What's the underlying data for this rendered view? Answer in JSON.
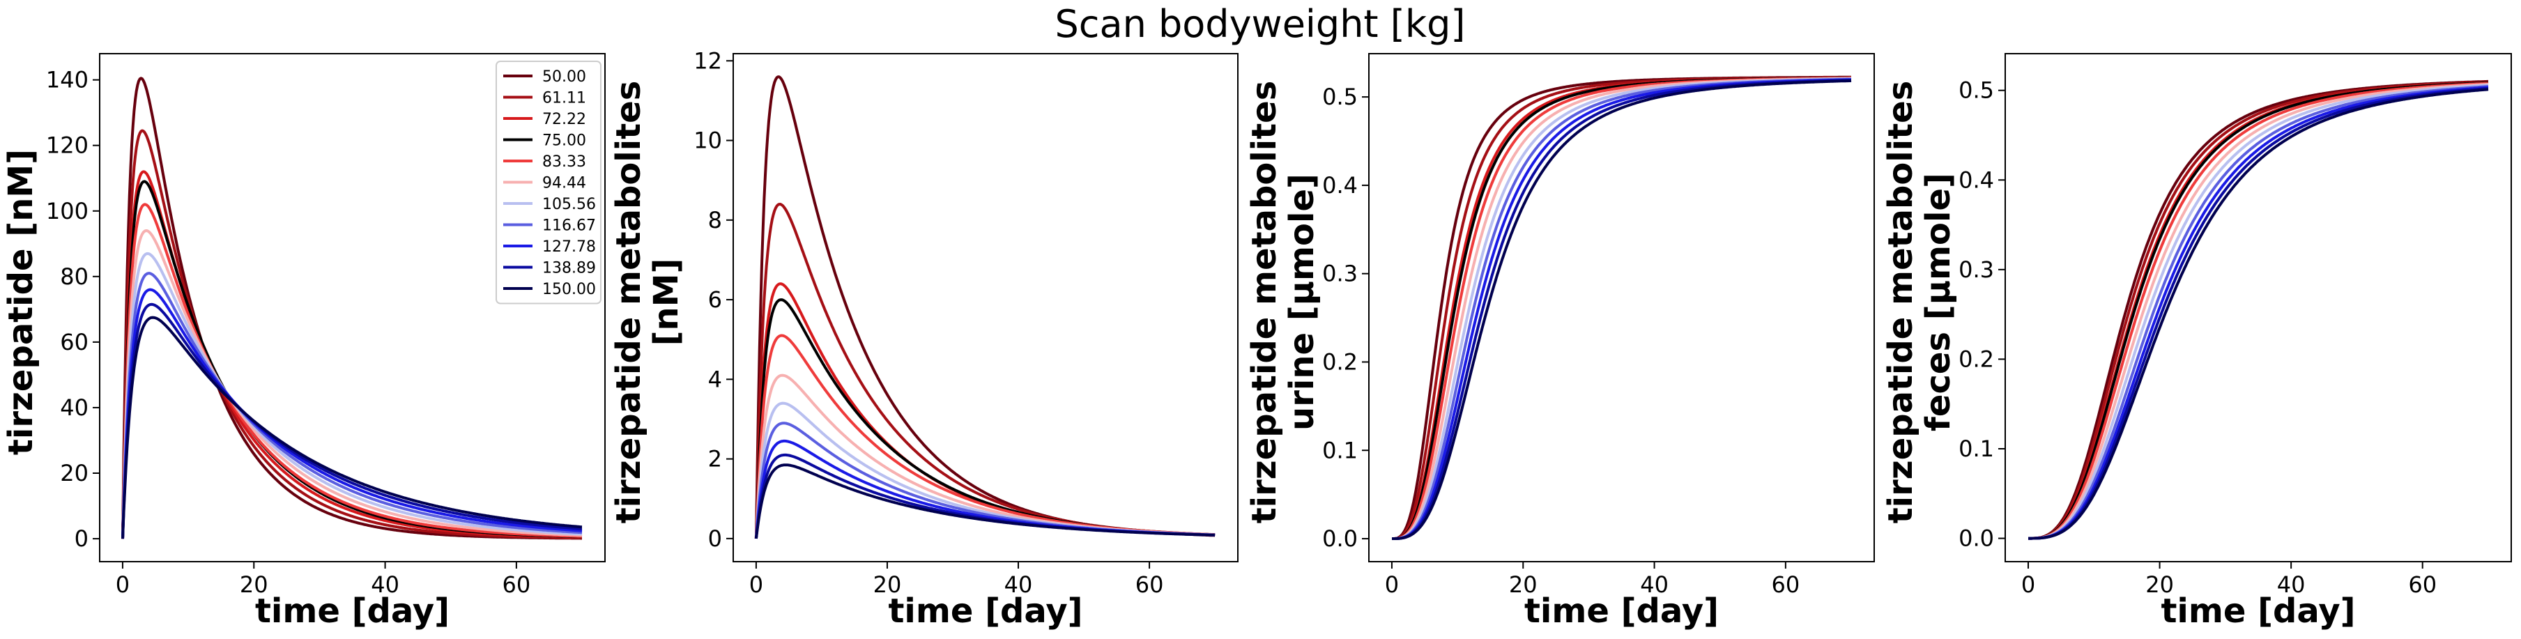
{
  "figure": {
    "title": "Scan bodyweight [kg]"
  },
  "legend": {
    "entries": [
      {
        "label": "50.00",
        "color": "#67000d"
      },
      {
        "label": "61.11",
        "color": "#a50f15"
      },
      {
        "label": "72.22",
        "color": "#d7191c"
      },
      {
        "label": "75.00",
        "color": "#000000"
      },
      {
        "label": "83.33",
        "color": "#ef3b3b"
      },
      {
        "label": "94.44",
        "color": "#f7b0b0"
      },
      {
        "label": "105.56",
        "color": "#b8bff0"
      },
      {
        "label": "116.67",
        "color": "#5a5ee0"
      },
      {
        "label": "127.78",
        "color": "#1a1ae6"
      },
      {
        "label": "138.89",
        "color": "#0a0aa0"
      },
      {
        "label": "150.00",
        "color": "#00004f"
      }
    ],
    "placement": "upper-right of first panel"
  },
  "chart_data": [
    {
      "type": "line",
      "xlabel": "time [day]",
      "ylabel_lines": [
        "tirzepatide [nM]"
      ],
      "xlim": [
        -3.5,
        73.5
      ],
      "ylim": [
        -7,
        148
      ],
      "xticks": [
        0,
        20,
        40,
        60
      ],
      "yticks": [
        0,
        20,
        40,
        60,
        80,
        100,
        120,
        140
      ],
      "grid": false,
      "x_end": 70,
      "series": [
        {
          "label": "50.00",
          "peak_x": 2.8,
          "peak_y": 140.5,
          "end_y": 0.05
        },
        {
          "label": "61.11",
          "peak_x": 3.0,
          "peak_y": 124.5,
          "end_y": 0.1
        },
        {
          "label": "72.22",
          "peak_x": 3.2,
          "peak_y": 112,
          "end_y": 0.2
        },
        {
          "label": "75.00",
          "peak_x": 3.3,
          "peak_y": 109,
          "end_y": 0.2
        },
        {
          "label": "83.33",
          "peak_x": 3.4,
          "peak_y": 102,
          "end_y": 0.3
        },
        {
          "label": "94.44",
          "peak_x": 3.6,
          "peak_y": 94,
          "end_y": 0.4
        },
        {
          "label": "105.56",
          "peak_x": 3.8,
          "peak_y": 87,
          "end_y": 0.5
        },
        {
          "label": "116.67",
          "peak_x": 4.0,
          "peak_y": 81,
          "end_y": 0.6
        },
        {
          "label": "127.78",
          "peak_x": 4.2,
          "peak_y": 76,
          "end_y": 0.7
        },
        {
          "label": "138.89",
          "peak_x": 4.4,
          "peak_y": 71.5,
          "end_y": 0.8
        },
        {
          "label": "150.00",
          "peak_x": 4.6,
          "peak_y": 67.5,
          "end_y": 0.9
        }
      ]
    },
    {
      "type": "line",
      "xlabel": "time [day]",
      "ylabel_lines": [
        "tirzepatide metabolites",
        "[nM]"
      ],
      "xlim": [
        -3.5,
        73.5
      ],
      "ylim": [
        -0.58,
        12.18
      ],
      "xticks": [
        0,
        20,
        40,
        60
      ],
      "yticks": [
        0,
        2,
        4,
        6,
        8,
        10,
        12
      ],
      "grid": false,
      "x_end": 70,
      "series": [
        {
          "label": "50.00",
          "peak_x": 3.4,
          "peak_y": 11.6,
          "end_y": 0.0
        },
        {
          "label": "61.11",
          "peak_x": 3.6,
          "peak_y": 8.4,
          "end_y": 0.0
        },
        {
          "label": "72.22",
          "peak_x": 3.7,
          "peak_y": 6.4,
          "end_y": 0.0
        },
        {
          "label": "75.00",
          "peak_x": 3.8,
          "peak_y": 6.0,
          "end_y": 0.0
        },
        {
          "label": "83.33",
          "peak_x": 3.9,
          "peak_y": 5.1,
          "end_y": 0.0
        },
        {
          "label": "94.44",
          "peak_x": 4.0,
          "peak_y": 4.1,
          "end_y": 0.0
        },
        {
          "label": "105.56",
          "peak_x": 4.1,
          "peak_y": 3.4,
          "end_y": 0.0
        },
        {
          "label": "116.67",
          "peak_x": 4.2,
          "peak_y": 2.9,
          "end_y": 0.0
        },
        {
          "label": "127.78",
          "peak_x": 4.3,
          "peak_y": 2.45,
          "end_y": 0.0
        },
        {
          "label": "138.89",
          "peak_x": 4.4,
          "peak_y": 2.1,
          "end_y": 0.0
        },
        {
          "label": "150.00",
          "peak_x": 4.5,
          "peak_y": 1.85,
          "end_y": 0.0
        }
      ]
    },
    {
      "type": "line",
      "xlabel": "time [day]",
      "ylabel_lines": [
        "tirzepatide metabolites",
        "urine [µmole]"
      ],
      "xlim": [
        -3.5,
        73.5
      ],
      "ylim": [
        -0.026,
        0.549
      ],
      "xticks": [
        0,
        20,
        40,
        60
      ],
      "yticks": [
        0.0,
        0.1,
        0.2,
        0.3,
        0.4,
        0.5
      ],
      "ytick_labels": [
        "0.0",
        "0.1",
        "0.2",
        "0.3",
        "0.4",
        "0.5"
      ],
      "grid": false,
      "x_end": 70,
      "series": [
        {
          "label": "50.00",
          "final_y": 0.523,
          "half_x": 7.5
        },
        {
          "label": "61.11",
          "final_y": 0.523,
          "half_x": 8.4
        },
        {
          "label": "72.22",
          "final_y": 0.523,
          "half_x": 9.3
        },
        {
          "label": "75.00",
          "final_y": 0.523,
          "half_x": 9.6
        },
        {
          "label": "83.33",
          "final_y": 0.523,
          "half_x": 10.2
        },
        {
          "label": "94.44",
          "final_y": 0.523,
          "half_x": 11.0
        },
        {
          "label": "105.56",
          "final_y": 0.523,
          "half_x": 11.8
        },
        {
          "label": "116.67",
          "final_y": 0.523,
          "half_x": 12.5
        },
        {
          "label": "127.78",
          "final_y": 0.523,
          "half_x": 13.2
        },
        {
          "label": "138.89",
          "final_y": 0.523,
          "half_x": 13.9
        },
        {
          "label": "150.00",
          "final_y": 0.523,
          "half_x": 14.6
        }
      ]
    },
    {
      "type": "line",
      "xlabel": "time [day]",
      "ylabel_lines": [
        "tirzepatide metabolites",
        "feces [µmole]"
      ],
      "xlim": [
        -3.5,
        73.5
      ],
      "ylim": [
        -0.026,
        0.541
      ],
      "xticks": [
        0,
        20,
        40,
        60
      ],
      "yticks": [
        0.0,
        0.1,
        0.2,
        0.3,
        0.4,
        0.5
      ],
      "ytick_labels": [
        "0.0",
        "0.1",
        "0.2",
        "0.3",
        "0.4",
        "0.5"
      ],
      "grid": false,
      "x_end": 70,
      "series": [
        {
          "label": "50.00",
          "final_y": 0.515,
          "half_x": 15.0
        },
        {
          "label": "61.11",
          "final_y": 0.515,
          "half_x": 15.5
        },
        {
          "label": "72.22",
          "final_y": 0.515,
          "half_x": 16.1
        },
        {
          "label": "75.00",
          "final_y": 0.515,
          "half_x": 16.3
        },
        {
          "label": "83.33",
          "final_y": 0.515,
          "half_x": 16.9
        },
        {
          "label": "94.44",
          "final_y": 0.515,
          "half_x": 17.7
        },
        {
          "label": "105.56",
          "final_y": 0.515,
          "half_x": 18.5
        },
        {
          "label": "116.67",
          "final_y": 0.515,
          "half_x": 19.3
        },
        {
          "label": "127.78",
          "final_y": 0.515,
          "half_x": 20.0
        },
        {
          "label": "138.89",
          "final_y": 0.515,
          "half_x": 20.6
        },
        {
          "label": "150.00",
          "final_y": 0.515,
          "half_x": 21.2
        }
      ]
    }
  ]
}
